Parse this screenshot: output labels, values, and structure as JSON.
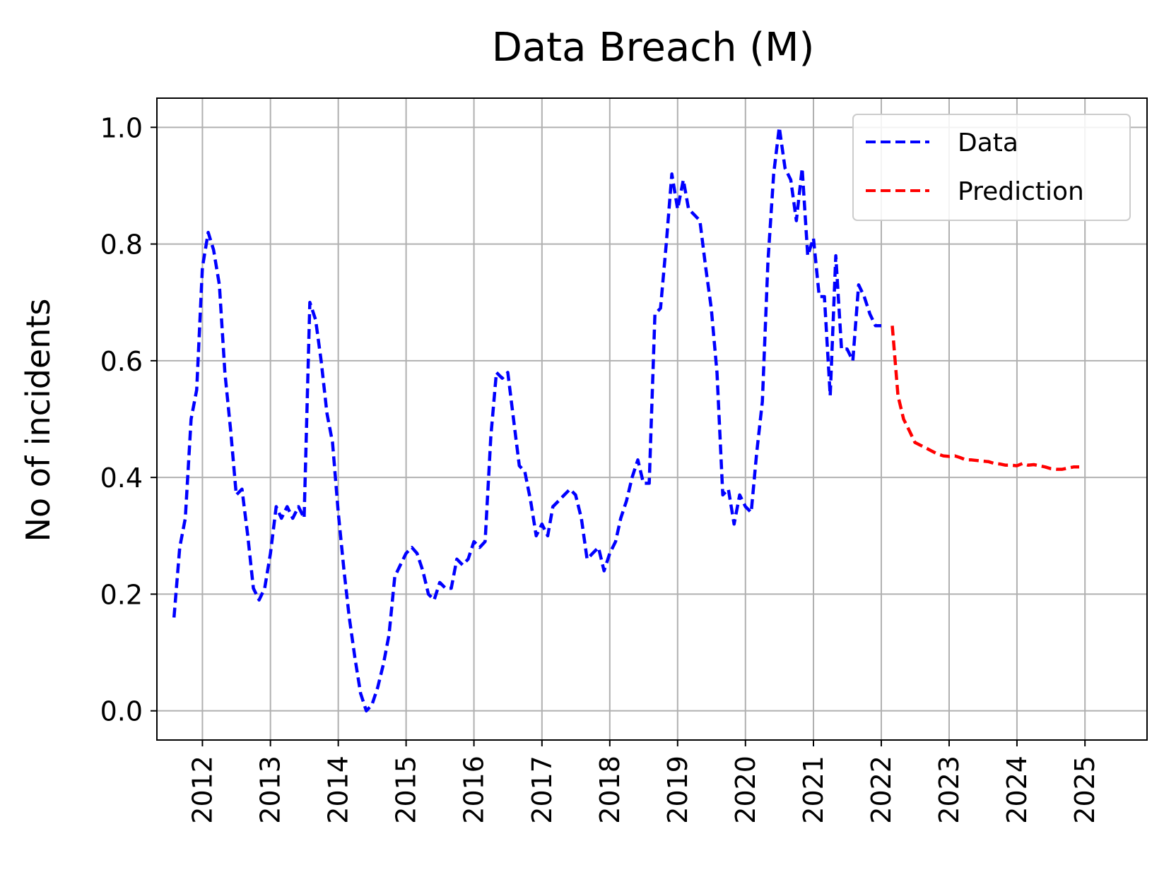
{
  "chart_data": {
    "type": "line",
    "title": "Data Breach (M)",
    "xlabel": "",
    "ylabel": "No of incidents",
    "x_ticks": [
      "2012",
      "2013",
      "2014",
      "2015",
      "2016",
      "2017",
      "2018",
      "2019",
      "2020",
      "2021",
      "2022",
      "2023",
      "2024",
      "2025"
    ],
    "y_ticks": [
      "0.0",
      "0.2",
      "0.4",
      "0.6",
      "0.8",
      "1.0"
    ],
    "xlim": [
      "2011-05-01",
      "2025-12-01"
    ],
    "ylim": [
      -0.05,
      1.05
    ],
    "grid": true,
    "legend_position": "top-right",
    "series": [
      {
        "name": "Data",
        "color": "#0000ff",
        "line_style": "dashed",
        "points": [
          [
            "2011-08-01",
            0.16
          ],
          [
            "2011-09-01",
            0.28
          ],
          [
            "2011-10-01",
            0.33
          ],
          [
            "2011-11-01",
            0.5
          ],
          [
            "2011-12-01",
            0.55
          ],
          [
            "2012-01-01",
            0.76
          ],
          [
            "2012-02-01",
            0.82
          ],
          [
            "2012-03-01",
            0.79
          ],
          [
            "2012-04-01",
            0.73
          ],
          [
            "2012-05-01",
            0.58
          ],
          [
            "2012-06-01",
            0.48
          ],
          [
            "2012-07-01",
            0.37
          ],
          [
            "2012-08-01",
            0.38
          ],
          [
            "2012-09-01",
            0.3
          ],
          [
            "2012-10-01",
            0.21
          ],
          [
            "2012-11-01",
            0.19
          ],
          [
            "2012-12-01",
            0.21
          ],
          [
            "2013-01-01",
            0.27
          ],
          [
            "2013-02-01",
            0.35
          ],
          [
            "2013-03-01",
            0.33
          ],
          [
            "2013-04-01",
            0.35
          ],
          [
            "2013-05-01",
            0.33
          ],
          [
            "2013-06-01",
            0.35
          ],
          [
            "2013-07-01",
            0.33
          ],
          [
            "2013-08-01",
            0.7
          ],
          [
            "2013-09-01",
            0.67
          ],
          [
            "2013-10-01",
            0.6
          ],
          [
            "2013-11-01",
            0.51
          ],
          [
            "2013-12-01",
            0.46
          ],
          [
            "2014-01-01",
            0.34
          ],
          [
            "2014-02-01",
            0.24
          ],
          [
            "2014-03-01",
            0.16
          ],
          [
            "2014-04-01",
            0.09
          ],
          [
            "2014-05-01",
            0.03
          ],
          [
            "2014-06-01",
            0.0
          ],
          [
            "2014-07-01",
            0.01
          ],
          [
            "2014-08-01",
            0.04
          ],
          [
            "2014-09-01",
            0.08
          ],
          [
            "2014-10-01",
            0.13
          ],
          [
            "2014-11-01",
            0.23
          ],
          [
            "2014-12-01",
            0.25
          ],
          [
            "2015-01-01",
            0.27
          ],
          [
            "2015-02-01",
            0.28
          ],
          [
            "2015-03-01",
            0.27
          ],
          [
            "2015-04-01",
            0.24
          ],
          [
            "2015-05-01",
            0.2
          ],
          [
            "2015-06-01",
            0.19
          ],
          [
            "2015-07-01",
            0.22
          ],
          [
            "2015-08-01",
            0.21
          ],
          [
            "2015-09-01",
            0.21
          ],
          [
            "2015-10-01",
            0.26
          ],
          [
            "2015-11-01",
            0.25
          ],
          [
            "2015-12-01",
            0.26
          ],
          [
            "2016-01-01",
            0.29
          ],
          [
            "2016-02-01",
            0.28
          ],
          [
            "2016-03-01",
            0.29
          ],
          [
            "2016-04-01",
            0.47
          ],
          [
            "2016-05-01",
            0.58
          ],
          [
            "2016-06-01",
            0.57
          ],
          [
            "2016-07-01",
            0.58
          ],
          [
            "2016-08-01",
            0.5
          ],
          [
            "2016-09-01",
            0.42
          ],
          [
            "2016-10-01",
            0.41
          ],
          [
            "2016-11-01",
            0.36
          ],
          [
            "2016-12-01",
            0.3
          ],
          [
            "2017-01-01",
            0.32
          ],
          [
            "2017-02-01",
            0.3
          ],
          [
            "2017-03-01",
            0.35
          ],
          [
            "2017-04-01",
            0.36
          ],
          [
            "2017-05-01",
            0.37
          ],
          [
            "2017-06-01",
            0.38
          ],
          [
            "2017-07-01",
            0.37
          ],
          [
            "2017-08-01",
            0.33
          ],
          [
            "2017-09-01",
            0.26
          ],
          [
            "2017-10-01",
            0.27
          ],
          [
            "2017-11-01",
            0.28
          ],
          [
            "2017-12-01",
            0.24
          ],
          [
            "2018-01-01",
            0.27
          ],
          [
            "2018-02-01",
            0.29
          ],
          [
            "2018-03-01",
            0.33
          ],
          [
            "2018-04-01",
            0.36
          ],
          [
            "2018-05-01",
            0.4
          ],
          [
            "2018-06-01",
            0.43
          ],
          [
            "2018-07-01",
            0.39
          ],
          [
            "2018-08-01",
            0.39
          ],
          [
            "2018-09-01",
            0.68
          ],
          [
            "2018-10-01",
            0.69
          ],
          [
            "2018-11-01",
            0.8
          ],
          [
            "2018-12-01",
            0.92
          ],
          [
            "2019-01-01",
            0.86
          ],
          [
            "2019-02-01",
            0.91
          ],
          [
            "2019-03-01",
            0.86
          ],
          [
            "2019-04-01",
            0.85
          ],
          [
            "2019-05-01",
            0.84
          ],
          [
            "2019-06-01",
            0.76
          ],
          [
            "2019-07-01",
            0.69
          ],
          [
            "2019-08-01",
            0.58
          ],
          [
            "2019-09-01",
            0.37
          ],
          [
            "2019-10-01",
            0.38
          ],
          [
            "2019-11-01",
            0.32
          ],
          [
            "2019-12-01",
            0.37
          ],
          [
            "2020-01-01",
            0.35
          ],
          [
            "2020-02-01",
            0.34
          ],
          [
            "2020-03-01",
            0.44
          ],
          [
            "2020-04-01",
            0.53
          ],
          [
            "2020-05-01",
            0.77
          ],
          [
            "2020-06-01",
            0.92
          ],
          [
            "2020-07-01",
            1.0
          ],
          [
            "2020-08-01",
            0.93
          ],
          [
            "2020-09-01",
            0.91
          ],
          [
            "2020-10-01",
            0.84
          ],
          [
            "2020-11-01",
            0.93
          ],
          [
            "2020-12-01",
            0.78
          ],
          [
            "2021-01-01",
            0.81
          ],
          [
            "2021-02-01",
            0.71
          ],
          [
            "2021-03-01",
            0.71
          ],
          [
            "2021-04-01",
            0.54
          ],
          [
            "2021-05-01",
            0.78
          ],
          [
            "2021-06-01",
            0.62
          ],
          [
            "2021-07-01",
            0.62
          ],
          [
            "2021-08-01",
            0.6
          ],
          [
            "2021-09-01",
            0.73
          ],
          [
            "2021-10-01",
            0.71
          ],
          [
            "2021-11-01",
            0.68
          ],
          [
            "2021-12-01",
            0.66
          ],
          [
            "2022-01-01",
            0.66
          ]
        ]
      },
      {
        "name": "Prediction",
        "color": "#ff0000",
        "line_style": "dashed",
        "points": [
          [
            "2022-03-01",
            0.66
          ],
          [
            "2022-04-01",
            0.54
          ],
          [
            "2022-05-01",
            0.5
          ],
          [
            "2022-06-01",
            0.48
          ],
          [
            "2022-07-01",
            0.46
          ],
          [
            "2022-08-01",
            0.455
          ],
          [
            "2022-09-01",
            0.45
          ],
          [
            "2022-10-01",
            0.445
          ],
          [
            "2022-11-01",
            0.44
          ],
          [
            "2022-12-01",
            0.437
          ],
          [
            "2023-01-01",
            0.436
          ],
          [
            "2023-02-01",
            0.437
          ],
          [
            "2023-03-01",
            0.434
          ],
          [
            "2023-04-01",
            0.43
          ],
          [
            "2023-05-01",
            0.43
          ],
          [
            "2023-06-01",
            0.429
          ],
          [
            "2023-07-01",
            0.428
          ],
          [
            "2023-08-01",
            0.427
          ],
          [
            "2023-09-01",
            0.424
          ],
          [
            "2023-10-01",
            0.423
          ],
          [
            "2023-11-01",
            0.421
          ],
          [
            "2023-12-01",
            0.421
          ],
          [
            "2024-01-01",
            0.42
          ],
          [
            "2024-02-01",
            0.424
          ],
          [
            "2024-03-01",
            0.421
          ],
          [
            "2024-04-01",
            0.422
          ],
          [
            "2024-05-01",
            0.42
          ],
          [
            "2024-06-01",
            0.418
          ],
          [
            "2024-07-01",
            0.415
          ],
          [
            "2024-08-01",
            0.414
          ],
          [
            "2024-09-01",
            0.414
          ],
          [
            "2024-10-01",
            0.416
          ],
          [
            "2024-11-01",
            0.418
          ],
          [
            "2024-12-01",
            0.418
          ]
        ]
      }
    ]
  }
}
